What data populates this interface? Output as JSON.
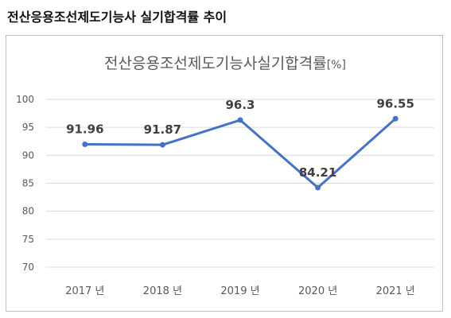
{
  "heading": "전산응용조선제도기능사 실기합격률 추이",
  "colors": {
    "series": "#4472c4",
    "grid": "#d9d9d9",
    "axis_text": "#595959",
    "label_text": "#404040",
    "title_text": "#595959"
  },
  "chart_data": {
    "type": "line",
    "title": "전산응용조선제도기능사실기합격률",
    "title_suffix": "[%]",
    "categories": [
      "2017 년",
      "2018 년",
      "2019 년",
      "2020 년",
      "2021 년"
    ],
    "series": [
      {
        "values": [
          91.96,
          91.87,
          96.3,
          84.21,
          96.55
        ]
      }
    ],
    "data_labels": [
      "91.96",
      "91.87",
      "96.3",
      "84.21",
      "96.55"
    ],
    "ylim": [
      70,
      100
    ],
    "yticks": [
      70,
      75,
      80,
      85,
      90,
      95,
      100
    ],
    "grid": true,
    "legend": "none"
  }
}
